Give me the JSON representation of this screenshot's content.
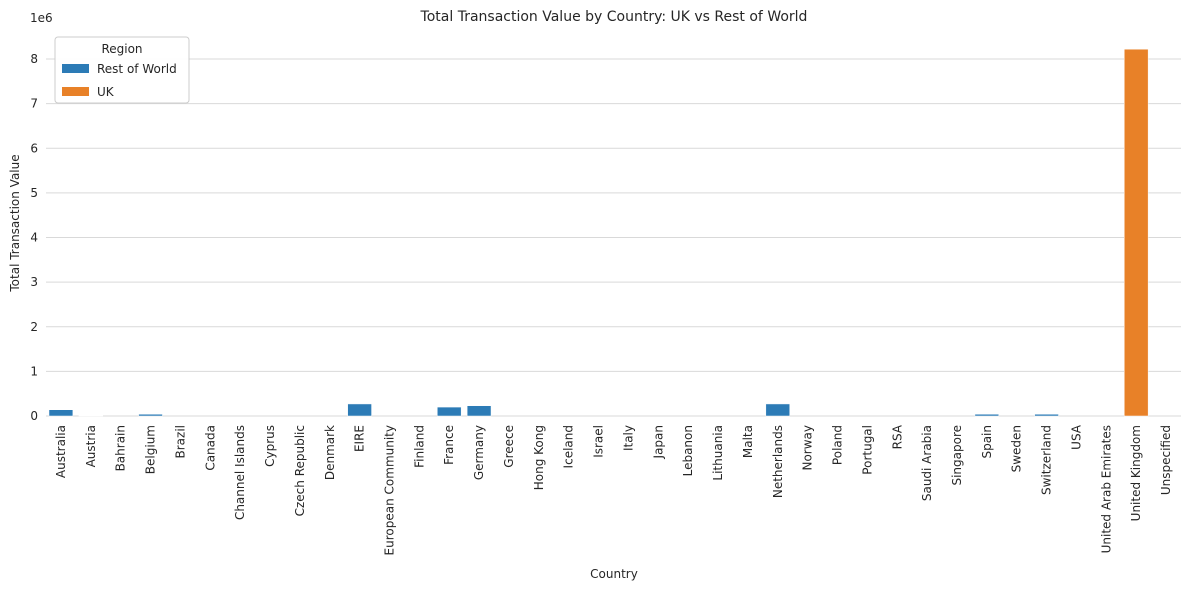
{
  "chart_data": {
    "type": "bar",
    "title": "Total Transaction Value by Country: UK vs Rest of World",
    "xlabel": "Country",
    "ylabel": "Total Transaction Value",
    "y_scale_label": "1e6",
    "ylim": [
      0,
      8.65
    ],
    "y_unit_multiplier": 1000000,
    "yticks": [
      0,
      1,
      2,
      3,
      4,
      5,
      6,
      7,
      8
    ],
    "grid": "horizontal",
    "legend": {
      "title": "Region",
      "placement": "top-left",
      "entries": [
        {
          "name": "Rest of World",
          "color": "#2c7bb6"
        },
        {
          "name": "UK",
          "color": "#e88128"
        }
      ]
    },
    "categories": [
      "Australia",
      "Austria",
      "Bahrain",
      "Belgium",
      "Brazil",
      "Canada",
      "Channel Islands",
      "Cyprus",
      "Czech Republic",
      "Denmark",
      "EIRE",
      "European Community",
      "Finland",
      "France",
      "Germany",
      "Greece",
      "Hong Kong",
      "Iceland",
      "Israel",
      "Italy",
      "Japan",
      "Lebanon",
      "Lithuania",
      "Malta",
      "Netherlands",
      "Norway",
      "Poland",
      "Portugal",
      "RSA",
      "Saudi Arabia",
      "Singapore",
      "Spain",
      "Sweden",
      "Switzerland",
      "USA",
      "United Arab Emirates",
      "United Kingdom",
      "Unspecified"
    ],
    "series": [
      {
        "name": "Rest of World",
        "color": "#2c7bb6",
        "values": [
          0.14,
          0.01,
          0.0,
          0.04,
          0.0,
          0.0,
          0.0,
          0.0,
          0.0,
          0.0,
          0.27,
          0.0,
          0.0,
          0.2,
          0.23,
          0.0,
          0.0,
          0.0,
          0.0,
          0.0,
          0.0,
          0.0,
          0.0,
          0.0,
          0.27,
          0.0,
          0.0,
          0.0,
          0.0,
          0.0,
          0.0,
          0.04,
          0.0,
          0.04,
          0.0,
          0.0,
          null,
          0.0
        ]
      },
      {
        "name": "UK",
        "color": "#e88128",
        "values": [
          null,
          null,
          null,
          null,
          null,
          null,
          null,
          null,
          null,
          null,
          null,
          null,
          null,
          null,
          null,
          null,
          null,
          null,
          null,
          null,
          null,
          null,
          null,
          null,
          null,
          null,
          null,
          null,
          null,
          null,
          null,
          null,
          null,
          null,
          null,
          null,
          8.22,
          null
        ]
      }
    ]
  }
}
